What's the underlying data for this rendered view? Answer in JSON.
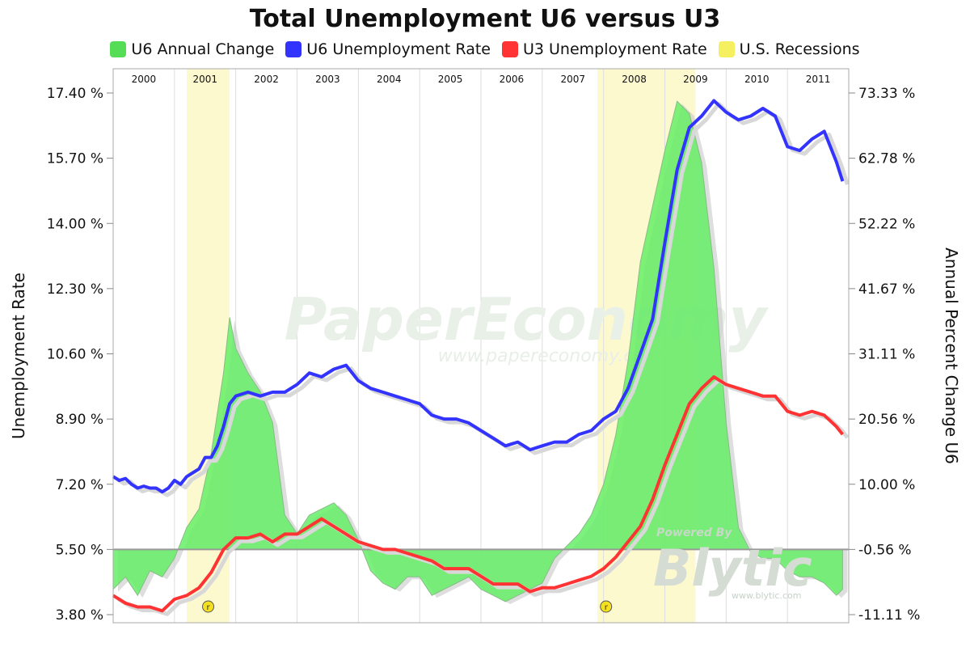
{
  "chart_data": {
    "type": "line",
    "title": "Total Unemployment U6 versus U3",
    "legend": [
      {
        "label": "U6 Annual Change",
        "color": "#55dd55"
      },
      {
        "label": "U6 Unemployment Rate",
        "color": "#3333ff"
      },
      {
        "label": "U3 Unemployment Rate",
        "color": "#ff3333"
      },
      {
        "label": "U.S. Recessions",
        "color": "#f5f060"
      }
    ],
    "legend_position": "top",
    "ylabel": "Unemployment Rate",
    "y2label": "Annual Percent Change U6",
    "ylim": [
      3.8,
      17.4
    ],
    "y2lim": [
      -11.11,
      73.33
    ],
    "yticks": [
      "3.80 %",
      "5.50 %",
      "7.20 %",
      "8.90 %",
      "10.60 %",
      "12.30 %",
      "14.00 %",
      "15.70 %",
      "17.40 %"
    ],
    "y2ticks": [
      "-11.11 %",
      "-0.56 %",
      "10.00 %",
      "20.56 %",
      "31.11 %",
      "41.67 %",
      "52.22 %",
      "62.78 %",
      "73.33 %"
    ],
    "years": [
      "2000",
      "2001",
      "2002",
      "2003",
      "2004",
      "2005",
      "2006",
      "2007",
      "2008",
      "2009",
      "2010",
      "2011"
    ],
    "grid": true,
    "recessions": [
      {
        "start": 2001.2,
        "end": 2001.9,
        "label": "r"
      },
      {
        "start": 2007.9,
        "end": 2009.5,
        "label": "r"
      }
    ],
    "series": [
      {
        "name": "U6 Unemployment Rate",
        "color": "#3333ff",
        "axis": "left",
        "points": [
          [
            2000.0,
            7.4
          ],
          [
            2000.1,
            7.3
          ],
          [
            2000.2,
            7.35
          ],
          [
            2000.3,
            7.2
          ],
          [
            2000.4,
            7.1
          ],
          [
            2000.5,
            7.15
          ],
          [
            2000.6,
            7.1
          ],
          [
            2000.7,
            7.1
          ],
          [
            2000.8,
            7.0
          ],
          [
            2000.9,
            7.1
          ],
          [
            2001.0,
            7.3
          ],
          [
            2001.1,
            7.2
          ],
          [
            2001.2,
            7.4
          ],
          [
            2001.3,
            7.5
          ],
          [
            2001.4,
            7.6
          ],
          [
            2001.5,
            7.9
          ],
          [
            2001.6,
            7.9
          ],
          [
            2001.7,
            8.2
          ],
          [
            2001.8,
            8.7
          ],
          [
            2001.9,
            9.3
          ],
          [
            2002.0,
            9.5
          ],
          [
            2002.2,
            9.6
          ],
          [
            2002.4,
            9.5
          ],
          [
            2002.6,
            9.6
          ],
          [
            2002.8,
            9.6
          ],
          [
            2003.0,
            9.8
          ],
          [
            2003.2,
            10.1
          ],
          [
            2003.4,
            10.0
          ],
          [
            2003.6,
            10.2
          ],
          [
            2003.8,
            10.3
          ],
          [
            2004.0,
            9.9
          ],
          [
            2004.2,
            9.7
          ],
          [
            2004.4,
            9.6
          ],
          [
            2004.6,
            9.5
          ],
          [
            2004.8,
            9.4
          ],
          [
            2005.0,
            9.3
          ],
          [
            2005.2,
            9.0
          ],
          [
            2005.4,
            8.9
          ],
          [
            2005.6,
            8.9
          ],
          [
            2005.8,
            8.8
          ],
          [
            2006.0,
            8.6
          ],
          [
            2006.2,
            8.4
          ],
          [
            2006.4,
            8.2
          ],
          [
            2006.6,
            8.3
          ],
          [
            2006.8,
            8.1
          ],
          [
            2007.0,
            8.2
          ],
          [
            2007.2,
            8.3
          ],
          [
            2007.4,
            8.3
          ],
          [
            2007.6,
            8.5
          ],
          [
            2007.8,
            8.6
          ],
          [
            2008.0,
            8.9
          ],
          [
            2008.2,
            9.1
          ],
          [
            2008.4,
            9.7
          ],
          [
            2008.6,
            10.6
          ],
          [
            2008.8,
            11.5
          ],
          [
            2009.0,
            13.5
          ],
          [
            2009.2,
            15.4
          ],
          [
            2009.4,
            16.5
          ],
          [
            2009.6,
            16.8
          ],
          [
            2009.8,
            17.2
          ],
          [
            2010.0,
            16.9
          ],
          [
            2010.2,
            16.7
          ],
          [
            2010.4,
            16.8
          ],
          [
            2010.6,
            17.0
          ],
          [
            2010.8,
            16.8
          ],
          [
            2011.0,
            16.0
          ],
          [
            2011.2,
            15.9
          ],
          [
            2011.4,
            16.2
          ],
          [
            2011.6,
            16.4
          ],
          [
            2011.8,
            15.6
          ],
          [
            2011.9,
            15.1
          ]
        ]
      },
      {
        "name": "U3 Unemployment Rate",
        "color": "#ff3333",
        "axis": "left",
        "points": [
          [
            2000.0,
            4.3
          ],
          [
            2000.2,
            4.1
          ],
          [
            2000.4,
            4.0
          ],
          [
            2000.6,
            4.0
          ],
          [
            2000.8,
            3.9
          ],
          [
            2001.0,
            4.2
          ],
          [
            2001.2,
            4.3
          ],
          [
            2001.4,
            4.5
          ],
          [
            2001.6,
            4.9
          ],
          [
            2001.8,
            5.5
          ],
          [
            2002.0,
            5.8
          ],
          [
            2002.2,
            5.8
          ],
          [
            2002.4,
            5.9
          ],
          [
            2002.6,
            5.7
          ],
          [
            2002.8,
            5.9
          ],
          [
            2003.0,
            5.9
          ],
          [
            2003.2,
            6.1
          ],
          [
            2003.4,
            6.3
          ],
          [
            2003.6,
            6.1
          ],
          [
            2003.8,
            5.9
          ],
          [
            2004.0,
            5.7
          ],
          [
            2004.2,
            5.6
          ],
          [
            2004.4,
            5.5
          ],
          [
            2004.6,
            5.5
          ],
          [
            2004.8,
            5.4
          ],
          [
            2005.0,
            5.3
          ],
          [
            2005.2,
            5.2
          ],
          [
            2005.4,
            5.0
          ],
          [
            2005.6,
            5.0
          ],
          [
            2005.8,
            5.0
          ],
          [
            2006.0,
            4.8
          ],
          [
            2006.2,
            4.6
          ],
          [
            2006.4,
            4.6
          ],
          [
            2006.6,
            4.6
          ],
          [
            2006.8,
            4.4
          ],
          [
            2007.0,
            4.5
          ],
          [
            2007.2,
            4.5
          ],
          [
            2007.4,
            4.6
          ],
          [
            2007.6,
            4.7
          ],
          [
            2007.8,
            4.8
          ],
          [
            2008.0,
            5.0
          ],
          [
            2008.2,
            5.3
          ],
          [
            2008.4,
            5.7
          ],
          [
            2008.6,
            6.1
          ],
          [
            2008.8,
            6.8
          ],
          [
            2009.0,
            7.7
          ],
          [
            2009.2,
            8.5
          ],
          [
            2009.4,
            9.3
          ],
          [
            2009.6,
            9.7
          ],
          [
            2009.8,
            10.0
          ],
          [
            2010.0,
            9.8
          ],
          [
            2010.2,
            9.7
          ],
          [
            2010.4,
            9.6
          ],
          [
            2010.6,
            9.5
          ],
          [
            2010.8,
            9.5
          ],
          [
            2011.0,
            9.1
          ],
          [
            2011.2,
            9.0
          ],
          [
            2011.4,
            9.1
          ],
          [
            2011.6,
            9.0
          ],
          [
            2011.8,
            8.7
          ],
          [
            2011.9,
            8.5
          ]
        ]
      },
      {
        "name": "U6 Annual Change",
        "color": "#55dd55",
        "axis": "right",
        "type": "area",
        "points": [
          [
            2000.0,
            -7
          ],
          [
            2000.2,
            -5
          ],
          [
            2000.4,
            -8
          ],
          [
            2000.6,
            -4
          ],
          [
            2000.8,
            -5
          ],
          [
            2001.0,
            -2
          ],
          [
            2001.2,
            3
          ],
          [
            2001.4,
            6
          ],
          [
            2001.6,
            15
          ],
          [
            2001.8,
            28
          ],
          [
            2001.9,
            37
          ],
          [
            2002.0,
            32
          ],
          [
            2002.2,
            28
          ],
          [
            2002.4,
            25
          ],
          [
            2002.6,
            20
          ],
          [
            2002.8,
            5
          ],
          [
            2003.0,
            2
          ],
          [
            2003.2,
            5
          ],
          [
            2003.4,
            6
          ],
          [
            2003.6,
            7
          ],
          [
            2003.8,
            5
          ],
          [
            2004.0,
            1
          ],
          [
            2004.2,
            -4
          ],
          [
            2004.4,
            -6
          ],
          [
            2004.6,
            -7
          ],
          [
            2004.8,
            -5
          ],
          [
            2005.0,
            -5
          ],
          [
            2005.2,
            -8
          ],
          [
            2005.4,
            -7
          ],
          [
            2005.6,
            -6
          ],
          [
            2005.8,
            -5
          ],
          [
            2006.0,
            -7
          ],
          [
            2006.2,
            -8
          ],
          [
            2006.4,
            -9
          ],
          [
            2006.6,
            -8
          ],
          [
            2006.8,
            -7
          ],
          [
            2007.0,
            -6
          ],
          [
            2007.2,
            -2
          ],
          [
            2007.4,
            0
          ],
          [
            2007.6,
            2
          ],
          [
            2007.8,
            5
          ],
          [
            2008.0,
            10
          ],
          [
            2008.2,
            18
          ],
          [
            2008.4,
            30
          ],
          [
            2008.6,
            46
          ],
          [
            2008.8,
            55
          ],
          [
            2009.0,
            64
          ],
          [
            2009.2,
            72
          ],
          [
            2009.4,
            70
          ],
          [
            2009.6,
            62
          ],
          [
            2009.8,
            45
          ],
          [
            2010.0,
            20
          ],
          [
            2010.2,
            3
          ],
          [
            2010.4,
            -1
          ],
          [
            2010.6,
            -2
          ],
          [
            2010.8,
            -2
          ],
          [
            2011.0,
            -4
          ],
          [
            2011.2,
            -5
          ],
          [
            2011.4,
            -5
          ],
          [
            2011.6,
            -6
          ],
          [
            2011.8,
            -8
          ],
          [
            2011.9,
            -7
          ]
        ]
      }
    ]
  },
  "watermark": {
    "brand": "PaperEconomy",
    "url": "www.papereconomy.com"
  },
  "powered_by": {
    "line1": "Powered By",
    "brand": "Blytic",
    "url": "www.blytic.com"
  }
}
